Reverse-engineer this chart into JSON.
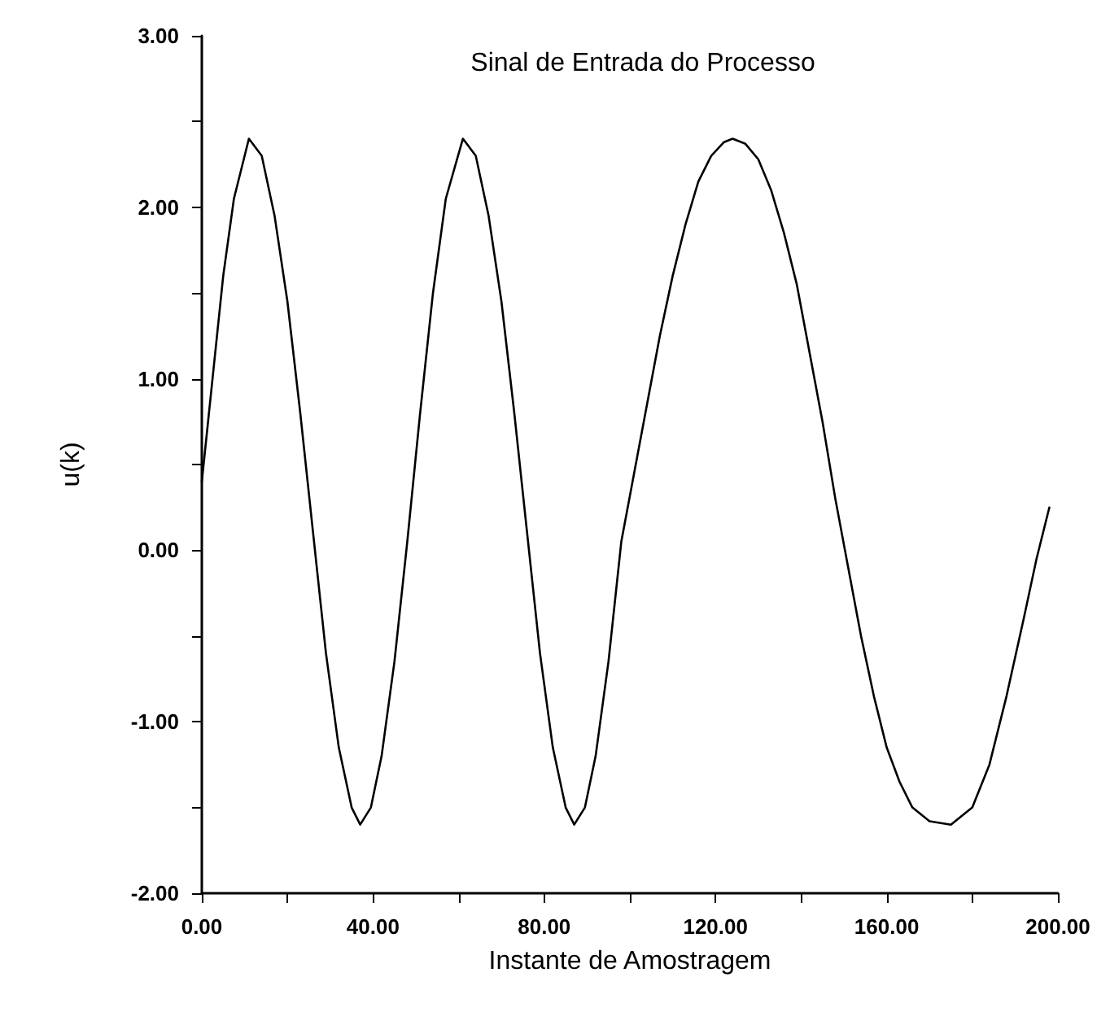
{
  "chart_data": {
    "type": "line",
    "title": "Sinal de Entrada do Processo",
    "xlabel": "Instante de Amostragem",
    "ylabel": "u(k)",
    "x": [
      0,
      2.5,
      5,
      7.5,
      11,
      14,
      17,
      20,
      23,
      26,
      29,
      32,
      35,
      37,
      39.5,
      42,
      45,
      48,
      51,
      54,
      57,
      61,
      64,
      67,
      70,
      73,
      76,
      79,
      82,
      85,
      87,
      89.5,
      92,
      95,
      98,
      101,
      104,
      107,
      110,
      113,
      116,
      119,
      122,
      124,
      127,
      130,
      133,
      136,
      139,
      142,
      145,
      148,
      151,
      154,
      157,
      160,
      163,
      166,
      170,
      175,
      180,
      184,
      188,
      192,
      195,
      198
    ],
    "series": [
      {
        "color": "#000000",
        "values": [
          0.4,
          1.0,
          1.6,
          2.05,
          2.4,
          2.3,
          1.95,
          1.45,
          0.8,
          0.1,
          -0.6,
          -1.15,
          -1.5,
          -1.6,
          -1.5,
          -1.2,
          -0.65,
          0.05,
          0.8,
          1.5,
          2.05,
          2.4,
          2.3,
          1.95,
          1.45,
          0.8,
          0.1,
          -0.6,
          -1.15,
          -1.5,
          -1.6,
          -1.5,
          -1.2,
          -0.65,
          0.05,
          0.45,
          0.85,
          1.25,
          1.6,
          1.9,
          2.15,
          2.3,
          2.38,
          2.4,
          2.37,
          2.28,
          2.1,
          1.85,
          1.55,
          1.15,
          0.75,
          0.3,
          -0.1,
          -0.5,
          -0.85,
          -1.15,
          -1.35,
          -1.5,
          -1.58,
          -1.6,
          -1.5,
          -1.25,
          -0.85,
          -0.4,
          -0.05,
          0.25
        ]
      }
    ],
    "xlim": [
      0,
      200
    ],
    "xticks": [
      {
        "value": 0,
        "label": "0.00"
      },
      {
        "value": 20,
        "label": null
      },
      {
        "value": 40,
        "label": "40.00"
      },
      {
        "value": 60,
        "label": null
      },
      {
        "value": 80,
        "label": "80.00"
      },
      {
        "value": 100,
        "label": null
      },
      {
        "value": 120,
        "label": "120.00"
      },
      {
        "value": 140,
        "label": null
      },
      {
        "value": 160,
        "label": "160.00"
      },
      {
        "value": 180,
        "label": null
      },
      {
        "value": 200,
        "label": "200.00"
      }
    ],
    "ylim": [
      -2,
      3
    ],
    "yticks": [
      {
        "value": -2,
        "label": "-2.00"
      },
      {
        "value": -1.5,
        "label": null
      },
      {
        "value": -1,
        "label": "-1.00"
      },
      {
        "value": -0.5,
        "label": null
      },
      {
        "value": 0,
        "label": "0.00"
      },
      {
        "value": 0.5,
        "label": null
      },
      {
        "value": 1,
        "label": "1.00"
      },
      {
        "value": 1.5,
        "label": null
      },
      {
        "value": 2,
        "label": "2.00"
      },
      {
        "value": 2.5,
        "label": null
      },
      {
        "value": 3,
        "label": "3.00"
      }
    ],
    "grid": false,
    "marker": "none",
    "line_style": "solid"
  }
}
